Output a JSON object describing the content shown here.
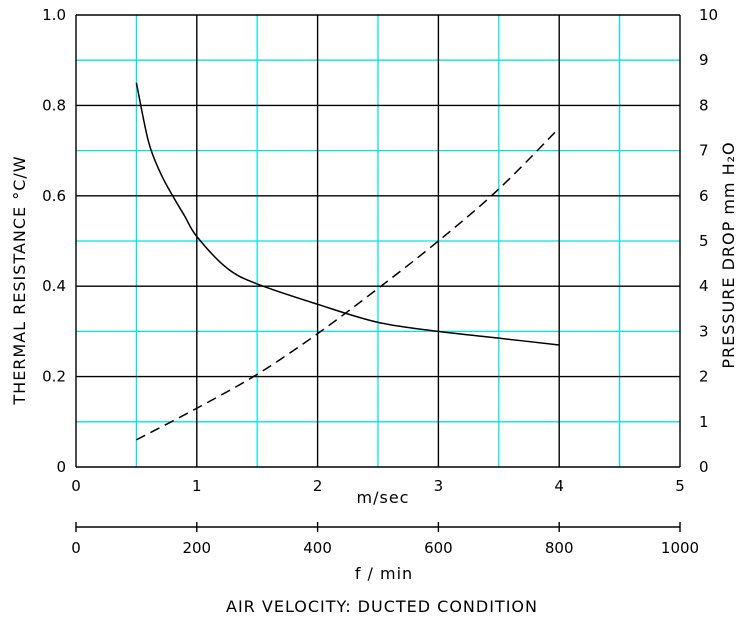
{
  "chart_data": {
    "type": "line",
    "title": "AIR VELOCITY: DUCTED CONDITION",
    "x": {
      "label": "m/sec",
      "range": [
        0,
        5
      ],
      "ticks": [
        0,
        1,
        2,
        3,
        4,
        5
      ],
      "tick_labels": [
        "0",
        "1",
        "2",
        "3",
        "4",
        "5"
      ]
    },
    "x2": {
      "label": "f / min",
      "range": [
        0,
        1000
      ],
      "ticks": [
        0,
        200,
        400,
        600,
        800,
        1000
      ],
      "tick_labels": [
        "0",
        "200",
        "400",
        "600",
        "800",
        "1000"
      ]
    },
    "y_left": {
      "label": "THERMAL RESISTANCE °C/W",
      "range": [
        0,
        1.0
      ],
      "ticks": [
        0,
        0.2,
        0.4,
        0.6,
        0.8,
        1.0
      ],
      "tick_labels": [
        "0",
        "0.2",
        "0.4",
        "0.6",
        "0.8",
        "1.0"
      ]
    },
    "y_right": {
      "label": "PRESSURE DROP mm H₂O",
      "range": [
        0,
        10
      ],
      "ticks": [
        0,
        1,
        2,
        3,
        4,
        5,
        6,
        7,
        8,
        9,
        10
      ],
      "tick_labels": [
        "0",
        "1",
        "2",
        "3",
        "4",
        "5",
        "6",
        "7",
        "8",
        "9",
        "10"
      ]
    },
    "grid": true,
    "grid_colors": {
      "major": "#000000",
      "minor": "#00e5e5"
    },
    "series": [
      {
        "axis": "left",
        "style": "solid",
        "x": [
          0.5,
          0.6,
          0.7,
          0.8,
          0.9,
          1.0,
          1.25,
          1.5,
          2.0,
          2.5,
          3.0,
          3.5,
          4.0
        ],
        "y": [
          0.85,
          0.72,
          0.65,
          0.6,
          0.555,
          0.51,
          0.44,
          0.405,
          0.36,
          0.32,
          0.3,
          0.285,
          0.27
        ]
      },
      {
        "axis": "right",
        "style": "dashed",
        "x": [
          0.5,
          1.0,
          1.5,
          2.0,
          2.5,
          3.0,
          3.5,
          4.0
        ],
        "y": [
          0.6,
          1.3,
          2.05,
          2.95,
          3.95,
          5.0,
          6.15,
          7.5
        ]
      }
    ]
  }
}
